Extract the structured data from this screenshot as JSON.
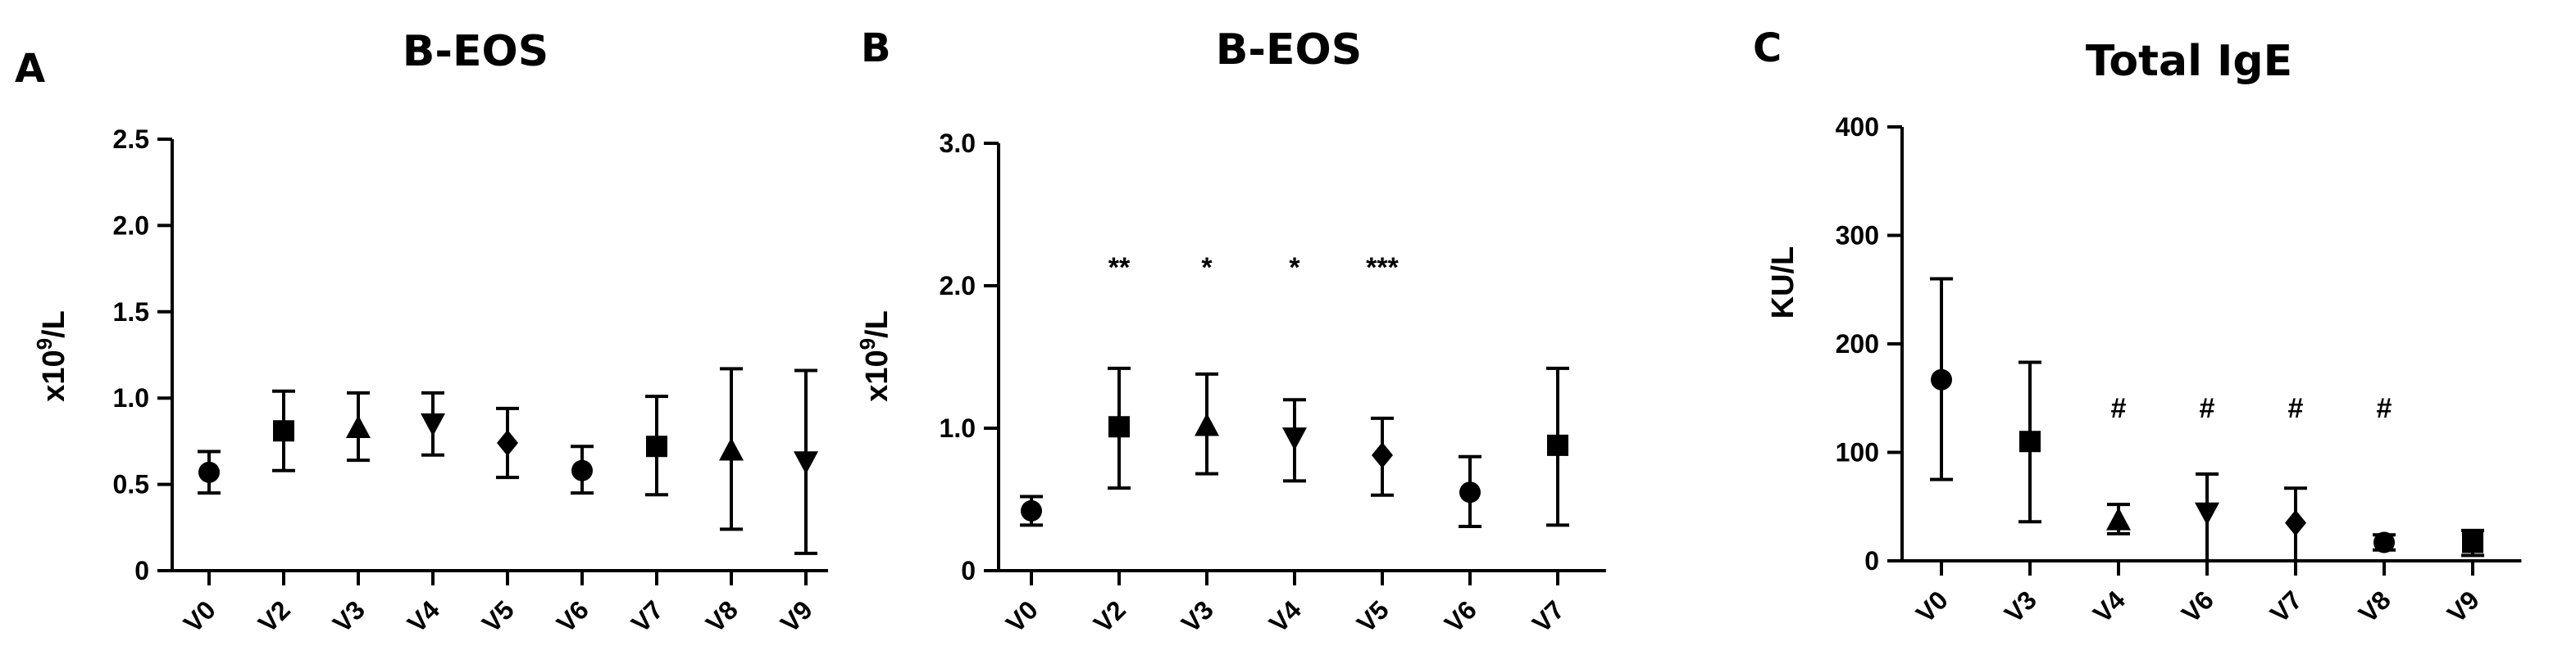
{
  "chart_data": [
    {
      "type": "scatter",
      "panel_letter": "A",
      "title": "B-EOS",
      "ylabel_base": "x10",
      "ylabel_exp": "9",
      "ylabel_unit": "/L",
      "ylim": [
        0,
        2.5
      ],
      "yticks": [
        "0",
        "0.5",
        "1.0",
        "1.5",
        "2.0",
        "2.5"
      ],
      "categories": [
        "V0",
        "V2",
        "V3",
        "V4",
        "V5",
        "V6",
        "V7",
        "V8",
        "V9"
      ],
      "markers": [
        "circle",
        "square",
        "triangle-up",
        "triangle-down",
        "diamond",
        "circle",
        "square",
        "triangle-up",
        "triangle-down"
      ],
      "values": [
        0.57,
        0.81,
        0.83,
        0.85,
        0.74,
        0.58,
        0.72,
        0.7,
        0.63
      ],
      "err_low": [
        0.45,
        0.58,
        0.64,
        0.67,
        0.54,
        0.45,
        0.44,
        0.24,
        0.1
      ],
      "err_high": [
        0.69,
        1.04,
        1.03,
        1.03,
        0.94,
        0.72,
        1.01,
        1.17,
        1.16
      ],
      "annotations": [
        "",
        "",
        "",
        "",
        "",
        "",
        "",
        "",
        ""
      ]
    },
    {
      "type": "scatter",
      "panel_letter": "B",
      "title": "B-EOS",
      "ylabel_base": "x10",
      "ylabel_exp": "9",
      "ylabel_unit": "/L",
      "ylim": [
        0,
        3.0
      ],
      "yticks": [
        "0",
        "1.0",
        "2.0",
        "3.0"
      ],
      "categories": [
        "V0",
        "V2",
        "V3",
        "V4",
        "V5",
        "V6",
        "V7"
      ],
      "markers": [
        "circle",
        "square",
        "triangle-up",
        "triangle-down",
        "diamond",
        "circle",
        "square"
      ],
      "values": [
        0.42,
        1.01,
        1.02,
        0.93,
        0.81,
        0.55,
        0.88
      ],
      "err_low": [
        0.32,
        0.58,
        0.68,
        0.63,
        0.53,
        0.31,
        0.32
      ],
      "err_high": [
        0.52,
        1.42,
        1.38,
        1.2,
        1.07,
        0.8,
        1.42
      ],
      "annotations": [
        "",
        "**",
        "*",
        "*",
        "***",
        "",
        ""
      ]
    },
    {
      "type": "scatter",
      "panel_letter": "C",
      "title": "Total IgE",
      "ylabel_base": "KU/L",
      "ylabel_exp": "",
      "ylabel_unit": "",
      "ylim": [
        0,
        400
      ],
      "yticks": [
        "0",
        "100",
        "200",
        "300",
        "400"
      ],
      "categories": [
        "V0",
        "V3",
        "V4",
        "V6",
        "V7",
        "V8",
        "V9"
      ],
      "markers": [
        "circle",
        "square",
        "triangle-up",
        "triangle-down",
        "diamond",
        "circle",
        "square"
      ],
      "values": [
        167,
        110,
        38,
        44,
        35,
        17,
        17
      ],
      "err_low": [
        75,
        36,
        25,
        0,
        0,
        10,
        5
      ],
      "err_high": [
        260,
        183,
        52,
        80,
        67,
        24,
        28
      ],
      "annotations": [
        "",
        "",
        "#",
        "#",
        "#",
        "#",
        ""
      ]
    }
  ]
}
